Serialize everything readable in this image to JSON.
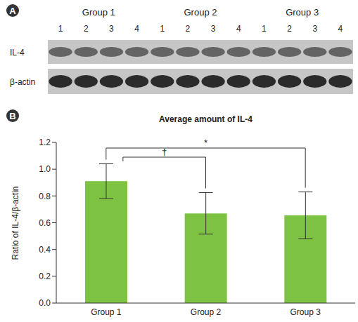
{
  "panel_a": {
    "label": "A",
    "groups": [
      "Group 1",
      "Group 2",
      "Group 3"
    ],
    "lanes": [
      "1",
      "2",
      "3",
      "4"
    ],
    "rows": [
      "IL-4",
      "β-actin"
    ]
  },
  "chart_data": {
    "panel_label": "B",
    "type": "bar",
    "title": "Average amount of IL-4",
    "y_label": "Ratio of IL-4/β-actin",
    "categories": [
      "Group 1",
      "Group 2",
      "Group 3"
    ],
    "values": [
      0.91,
      0.67,
      0.655
    ],
    "errors": [
      0.13,
      0.155,
      0.175
    ],
    "color": "#7dc242",
    "ylim": [
      0,
      1.2
    ],
    "yticks": [
      {
        "value": 0,
        "label": "0.0"
      },
      0.2,
      0.4,
      0.6,
      0.8,
      {
        "value": 1,
        "label": "1.0"
      },
      1.2
    ],
    "significance": [
      {
        "from": "Group 1",
        "to": "Group 3",
        "label": "*"
      },
      {
        "from": "Group 1",
        "to": "Group 2",
        "label": "†"
      }
    ]
  }
}
